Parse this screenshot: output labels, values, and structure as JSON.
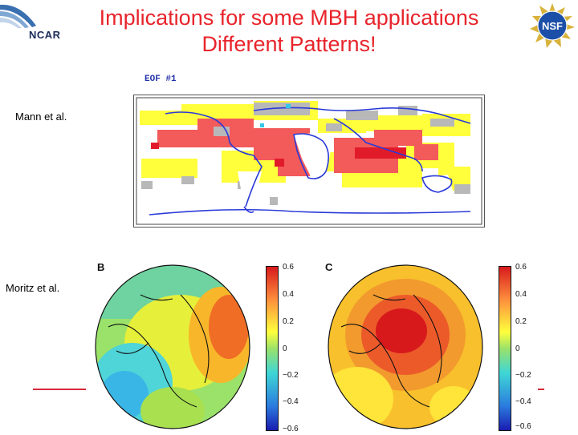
{
  "slide": {
    "title_line1": "Implications for some MBH applications",
    "title_line2": "Different Patterns!",
    "ncar_logo_text": "NCAR",
    "nsf_logo_text": "NSF"
  },
  "top_figure": {
    "eof_label": "EOF #1",
    "row_label": "Mann et al."
  },
  "bottom_figure": {
    "row_label": "Moritz et al.",
    "panel_b": {
      "letter": "B"
    },
    "panel_c": {
      "letter": "C"
    },
    "colorbar_ticks": [
      "0.6",
      "0.4",
      "0.2",
      "0",
      "−0.2",
      "−0.4",
      "−0.6"
    ]
  },
  "colors": {
    "title": "#e8242b",
    "map_red": "#f35a5a",
    "map_dark_red": "#e11b2a",
    "map_yellow": "#ffff3c",
    "map_gray": "#b8b8b8",
    "coast_blue": "#2a3ad8"
  }
}
